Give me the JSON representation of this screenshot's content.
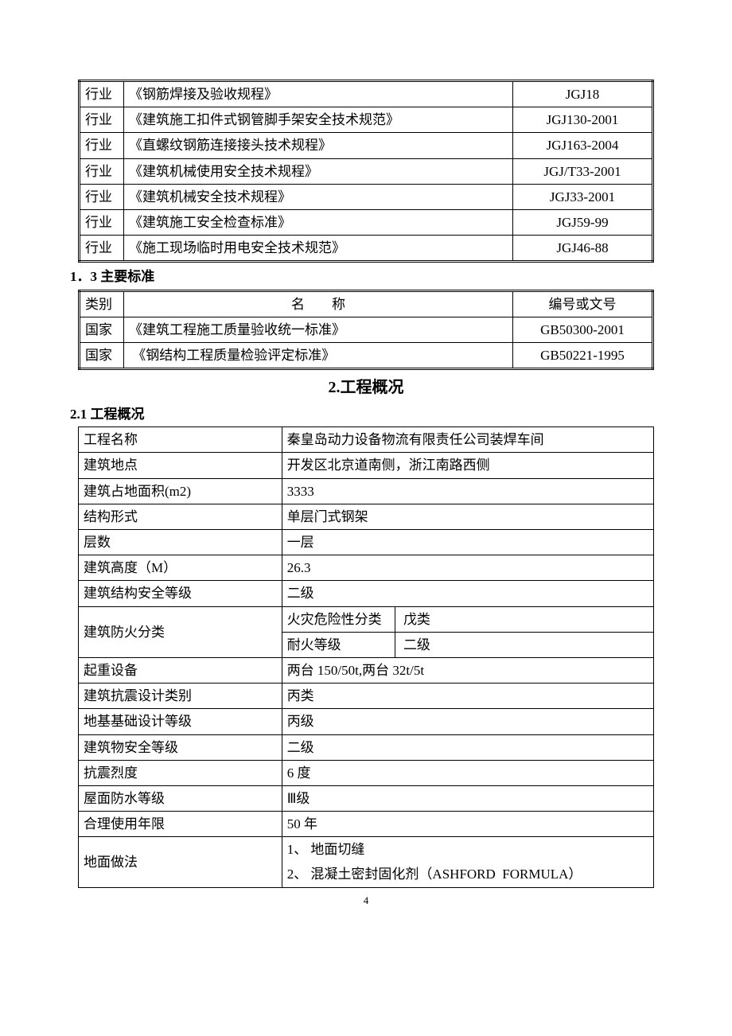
{
  "table1": {
    "rows": [
      {
        "category": "行业",
        "name": "《钢筋焊接及验收规程》",
        "code": "JGJ18"
      },
      {
        "category": "行业",
        "name": "《建筑施工扣件式钢管脚手架安全技术规范》",
        "code": "JGJ130-2001"
      },
      {
        "category": "行业",
        "name": "《直螺纹钢筋连接接头技术规程》",
        "code": "JGJ163-2004"
      },
      {
        "category": "行业",
        "name": "《建筑机械使用安全技术规程》",
        "code": "JGJ/T33-2001"
      },
      {
        "category": "行业",
        "name": "《建筑机械安全技术规程》",
        "code": "JGJ33-2001"
      },
      {
        "category": "行业",
        "name": "《建筑施工安全检查标准》",
        "code": "JGJ59-99"
      },
      {
        "category": "行业",
        "name": "《施工现场临时用电安全技术规范》",
        "code": "JGJ46-88"
      }
    ]
  },
  "heading1": "1．3 主要标准",
  "table2": {
    "header": {
      "category": "类别",
      "name": "名　　称",
      "code": "编号或文号"
    },
    "rows": [
      {
        "category": "国家",
        "name": "《建筑工程施工质量验收统一标准》",
        "code": "GB50300-2001"
      },
      {
        "category": "国家",
        "name": " 《钢结构工程质量检验评定标准》",
        "code": "GB50221-1995"
      }
    ]
  },
  "section2_title": "2.工程概况",
  "section2_1": "2.1 工程概况",
  "info": {
    "project_name_label": "工程名称",
    "project_name": "秦皇岛动力设备物流有限责任公司装焊车间",
    "location_label": "建筑地点",
    "location": "开发区北京道南侧，浙江南路西侧",
    "area_label": "建筑占地面积(m2)",
    "area": "3333",
    "structure_label": "结构形式",
    "structure": "单层门式钢架",
    "floors_label": "层数",
    "floors": "一层",
    "height_label": "建筑高度（M）",
    "height": "26.3",
    "safety_label": "建筑结构安全等级",
    "safety": "二级",
    "fire_class_label": "建筑防火分类",
    "fire_hazard_label": "火灾危险性分类",
    "fire_hazard": " 戊类",
    "fire_resist_label": "耐火等级",
    "fire_resist": " 二级",
    "crane_label": "起重设备",
    "crane": "两台 150/50t,两台 32t/5t",
    "seismic_cat_label": "建筑抗震设计类别",
    "seismic_cat": "丙类",
    "foundation_label": "地基基础设计等级",
    "foundation": "丙级",
    "building_safety_label": "建筑物安全等级",
    "building_safety": "二级",
    "seismic_intensity_label": "抗震烈度",
    "seismic_intensity": "6 度",
    "roof_label": "屋面防水等级",
    "roof": "Ⅲ级",
    "lifespan_label": "合理使用年限",
    "lifespan": "50 年",
    "ground_label": "地面做法",
    "ground_1": "1、 地面切缝",
    "ground_2": "2、 混凝土密封固化剂（ASHFORD  FORMULA）"
  },
  "page_number": "4"
}
